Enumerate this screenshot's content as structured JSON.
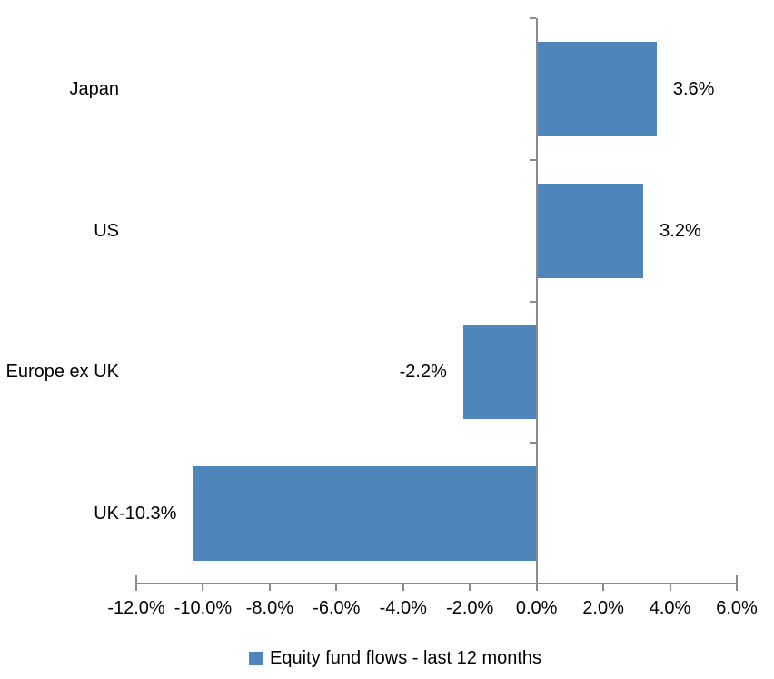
{
  "chart_data": {
    "type": "bar",
    "orientation": "horizontal",
    "categories": [
      "Japan",
      "US",
      "Europe ex UK",
      "UK"
    ],
    "values": [
      3.6,
      3.2,
      -2.2,
      -10.3
    ],
    "data_labels": [
      "3.6%",
      "3.2%",
      "-2.2%",
      "-10.3%"
    ],
    "series": [
      {
        "name": "Equity fund flows - last 12 months",
        "values": [
          3.6,
          3.2,
          -2.2,
          -10.3
        ]
      }
    ],
    "title": "",
    "xlabel": "",
    "ylabel": "",
    "xlim": [
      -12,
      6
    ],
    "x_ticks": [
      -12,
      -10,
      -8,
      -6,
      -4,
      -2,
      0,
      2,
      4,
      6
    ],
    "x_tick_labels": [
      "-12.0%",
      "-10.0%",
      "-8.0%",
      "-6.0%",
      "-4.0%",
      "-2.0%",
      "0.0%",
      "2.0%",
      "4.0%",
      "6.0%"
    ],
    "grid": false,
    "legend": {
      "position": "bottom",
      "marker": "square",
      "label": "Equity fund flows - last 12 months"
    },
    "colors": {
      "bar": "#4E86BC",
      "axis": "#8A8A8A",
      "text": "#000000",
      "background": "#FFFFFF"
    }
  }
}
